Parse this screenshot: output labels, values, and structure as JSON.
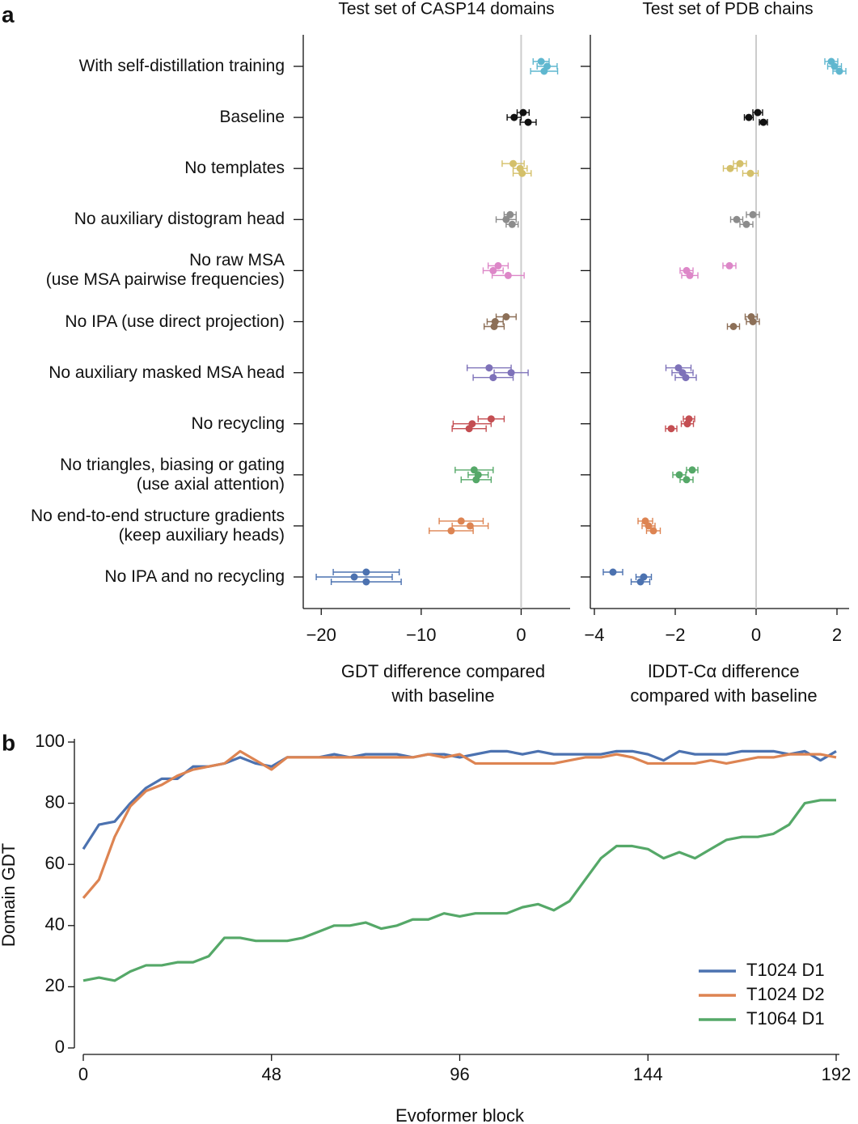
{
  "panel_labels": [
    "a",
    "b"
  ],
  "chart_data": [
    {
      "type": "dot",
      "title": "Test set of CASP14 domains",
      "xlabel": "GDT difference compared\nwith baseline",
      "categories": [
        "With self-distillation training",
        "Baseline",
        "No templates",
        "No auxiliary distogram head",
        "No raw MSA\n(use MSA pairwise frequencies)",
        "No IPA (use direct projection)",
        "No auxiliary masked MSA head",
        "No recycling",
        "No triangles, biasing or gating\n(use axial attention)",
        "No end-to-end structure gradients\n(keep auxiliary heads)",
        "No IPA and no recycling"
      ],
      "colors": [
        "#5fb7cf",
        "#111111",
        "#d4c06a",
        "#8c8c8c",
        "#dd87c8",
        "#8c6f57",
        "#7e72b9",
        "#c44e52",
        "#55a868",
        "#dd8452",
        "#4c72b0"
      ],
      "values": [
        [
          2.0,
          2.6,
          2.3
        ],
        [
          0.2,
          -0.7,
          0.7
        ],
        [
          -0.8,
          -0.1,
          0.1
        ],
        [
          -1.1,
          -1.5,
          -0.9
        ],
        [
          -2.3,
          -2.8,
          -1.3
        ],
        [
          -1.5,
          -2.6,
          -2.7
        ],
        [
          -3.2,
          -1.0,
          -2.8
        ],
        [
          -3.0,
          -4.9,
          -5.2
        ],
        [
          -4.7,
          -4.3,
          -4.5
        ],
        [
          -6.0,
          -5.1,
          -7.0
        ],
        [
          -15.5,
          -16.7,
          -15.5
        ]
      ],
      "errors": [
        [
          0.8,
          1.0,
          1.35
        ],
        [
          0.6,
          0.7,
          0.8
        ],
        [
          1.1,
          0.7,
          0.9
        ],
        [
          0.6,
          1.0,
          0.6
        ],
        [
          1.0,
          1.0,
          1.6
        ],
        [
          1.0,
          0.8,
          1.0
        ],
        [
          2.2,
          1.7,
          2.0
        ],
        [
          1.3,
          1.9,
          1.7
        ],
        [
          1.9,
          1.0,
          1.5
        ],
        [
          2.2,
          1.8,
          2.2
        ],
        [
          3.3,
          3.8,
          3.5
        ]
      ],
      "xlim": [
        -21.8,
        4.9
      ],
      "xticks": [
        {
          "value": -20,
          "label": "−20"
        },
        {
          "value": -10,
          "label": "−10"
        },
        0
      ]
    },
    {
      "type": "dot",
      "title": "Test set of PDB chains",
      "xlabel": "lDDT-Cα difference\ncompared with baseline",
      "colors": [
        "#5fb7cf",
        "#111111",
        "#d4c06a",
        "#8c8c8c",
        "#dd87c8",
        "#8c6f57",
        "#7e72b9",
        "#c44e52",
        "#55a868",
        "#dd8452",
        "#4c72b0"
      ],
      "values": [
        [
          1.86,
          1.94,
          2.06
        ],
        [
          0.04,
          -0.18,
          0.18
        ],
        [
          -0.4,
          -0.64,
          -0.14
        ],
        [
          -0.08,
          -0.48,
          -0.24
        ],
        [
          -0.66,
          -1.72,
          -1.64
        ],
        [
          -0.12,
          -0.08,
          -0.56
        ],
        [
          -1.92,
          -1.82,
          -1.74
        ],
        [
          -1.66,
          -1.7,
          -2.1
        ],
        [
          -1.58,
          -1.9,
          -1.72
        ],
        [
          -2.74,
          -2.66,
          -2.54
        ],
        [
          -3.54,
          -2.78,
          -2.86
        ]
      ],
      "errors": [
        [
          0.16,
          0.17,
          0.16
        ],
        [
          0.12,
          0.11,
          0.1
        ],
        [
          0.16,
          0.17,
          0.19
        ],
        [
          0.16,
          0.15,
          0.16
        ],
        [
          0.16,
          0.16,
          0.2
        ],
        [
          0.15,
          0.16,
          0.15
        ],
        [
          0.31,
          0.26,
          0.26
        ],
        [
          0.14,
          0.15,
          0.14
        ],
        [
          0.14,
          0.16,
          0.16
        ],
        [
          0.18,
          0.16,
          0.17
        ],
        [
          0.24,
          0.19,
          0.23
        ]
      ],
      "xlim": [
        -4.1,
        2.3
      ],
      "xticks": [
        {
          "value": -4,
          "label": "−4"
        },
        {
          "value": -2,
          "label": "−2"
        },
        0,
        2
      ]
    },
    {
      "type": "line",
      "xlabel": "Evoformer block",
      "ylabel": "Domain GDT",
      "x": [
        0,
        4,
        8,
        12,
        16,
        20,
        24,
        28,
        32,
        36,
        40,
        44,
        48,
        52,
        56,
        60,
        64,
        68,
        72,
        76,
        80,
        84,
        88,
        92,
        96,
        100,
        104,
        108,
        112,
        116,
        120,
        124,
        128,
        132,
        136,
        140,
        144,
        148,
        152,
        156,
        160,
        164,
        168,
        172,
        176,
        180,
        184,
        188,
        192
      ],
      "series": [
        {
          "name": "T1024 D1",
          "color": "#4c72b0",
          "values": [
            65,
            73,
            74,
            80,
            85,
            88,
            88,
            92,
            92,
            93,
            95,
            93,
            92,
            95,
            95,
            95,
            96,
            95,
            96,
            96,
            96,
            95,
            96,
            96,
            95,
            96,
            97,
            97,
            96,
            97,
            96,
            96,
            96,
            96,
            97,
            97,
            96,
            94,
            97,
            96,
            96,
            96,
            97,
            97,
            97,
            96,
            97,
            94,
            97
          ]
        },
        {
          "name": "T1024 D2",
          "color": "#dd8452",
          "values": [
            49,
            55,
            69,
            79,
            84,
            86,
            89,
            91,
            92,
            93,
            97,
            94,
            91,
            95,
            95,
            95,
            95,
            95,
            95,
            95,
            95,
            95,
            96,
            95,
            96,
            93,
            93,
            93,
            93,
            93,
            93,
            94,
            95,
            95,
            96,
            95,
            93,
            93,
            93,
            93,
            94,
            93,
            94,
            95,
            95,
            96,
            96,
            96,
            95
          ]
        },
        {
          "name": "T1064 D1",
          "color": "#55a868",
          "values": [
            22,
            23,
            22,
            25,
            27,
            27,
            28,
            28,
            30,
            36,
            36,
            35,
            35,
            35,
            36,
            38,
            40,
            40,
            41,
            39,
            40,
            42,
            42,
            44,
            43,
            44,
            44,
            44,
            46,
            47,
            45,
            48,
            55,
            62,
            66,
            66,
            65,
            62,
            64,
            62,
            65,
            68,
            69,
            69,
            70,
            73,
            80,
            81,
            81
          ]
        }
      ],
      "xlim": [
        0,
        192
      ],
      "xticks": [
        0,
        48,
        96,
        144,
        192
      ],
      "ylim": [
        0,
        100
      ],
      "yticks": [
        0,
        20,
        40,
        60,
        80,
        100
      ],
      "legend": "lower right"
    }
  ]
}
